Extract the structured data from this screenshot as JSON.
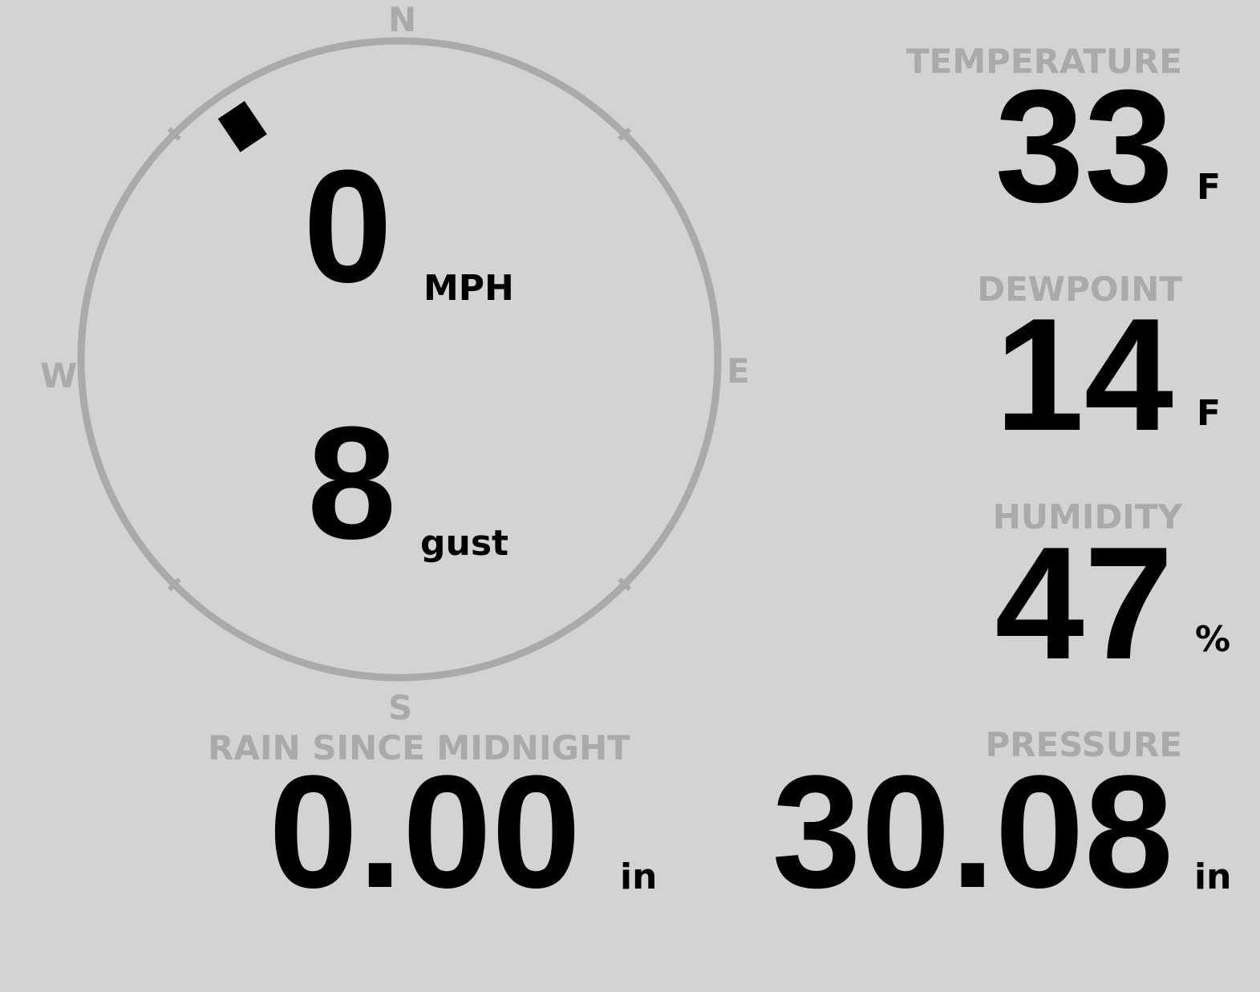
{
  "compass": {
    "north": "N",
    "south": "S",
    "east": "E",
    "west": "W",
    "wind_direction_deg": 326,
    "ring_color": "#aaaaaa"
  },
  "wind": {
    "speed": "0",
    "speed_unit": "MPH",
    "gust": "8",
    "gust_unit": "gust"
  },
  "temperature": {
    "label": "TEMPERATURE",
    "value": "33",
    "unit": "F"
  },
  "dewpoint": {
    "label": "DEWPOINT",
    "value": "14",
    "unit": "F"
  },
  "humidity": {
    "label": "HUMIDITY",
    "value": "47",
    "unit": "%"
  },
  "rain": {
    "label": "RAIN SINCE MIDNIGHT",
    "value": "0.00",
    "unit": "in"
  },
  "pressure": {
    "label": "PRESSURE",
    "value": "30.08",
    "unit": "in"
  }
}
